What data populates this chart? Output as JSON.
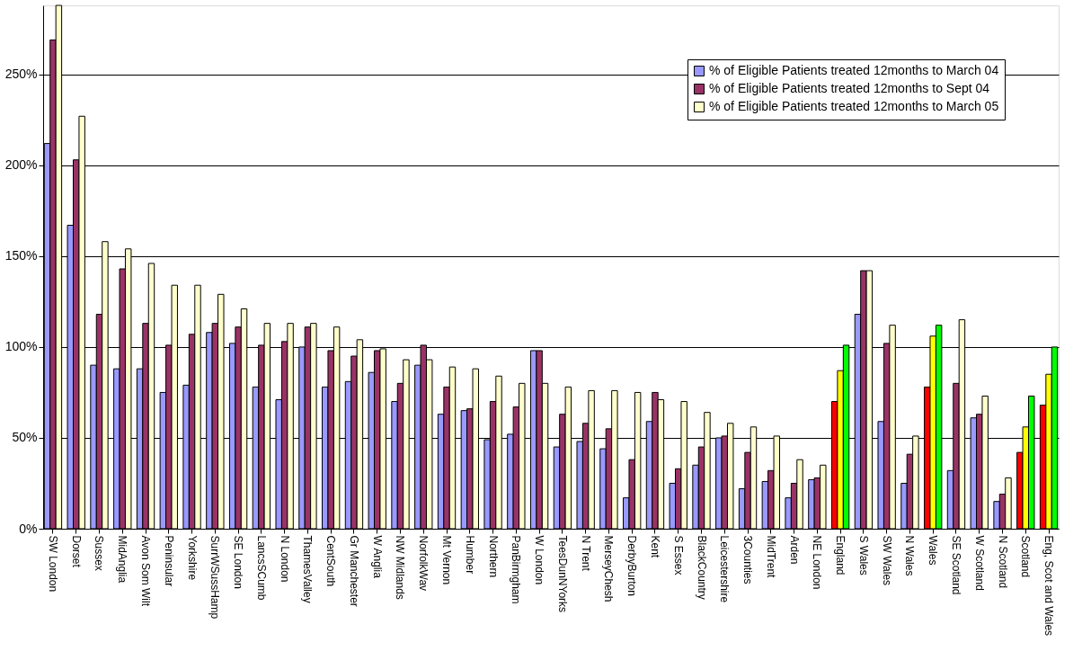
{
  "chart_data": {
    "type": "bar",
    "categories": [
      "SW London",
      "Dorset",
      "Sussex",
      "MidAnglia",
      "Avon Som Wilt",
      "Peninsular",
      "Yorkshire",
      "SurrWSussHamp",
      "SE London",
      "LancsSCumb",
      "N London",
      "ThamesValley",
      "CentSouth",
      "Gr Manchester",
      "W Anglia",
      "NW Midlands",
      "NorfolkWav",
      "Mt Vernon",
      "Humber",
      "Northern",
      "PanBirmgham",
      "W London",
      "TeesDunNYorks",
      "N Trent",
      "MerseyChesh",
      "DerbyBurton",
      "Kent",
      "S Essex",
      "BlackCountry",
      "Leicestershire",
      "3Counties",
      "MidTrent",
      "Arden",
      "NE London",
      "England",
      "S Wales",
      "SW Wales",
      "N Wales",
      "Wales",
      "SE Scotland",
      "W Scotland",
      "N Scotland",
      "Scotland",
      "Eng, Scot and Wales"
    ],
    "series": [
      {
        "name": "% of Eligible Patients treated 12months to March 04",
        "color": "#9999ff",
        "colors": [
          "#9999ff",
          "#9999ff",
          "#9999ff",
          "#9999ff",
          "#9999ff",
          "#9999ff",
          "#9999ff",
          "#9999ff",
          "#9999ff",
          "#9999ff",
          "#9999ff",
          "#9999ff",
          "#9999ff",
          "#9999ff",
          "#9999ff",
          "#9999ff",
          "#9999ff",
          "#9999ff",
          "#9999ff",
          "#9999ff",
          "#9999ff",
          "#9999ff",
          "#9999ff",
          "#9999ff",
          "#9999ff",
          "#9999ff",
          "#9999ff",
          "#9999ff",
          "#9999ff",
          "#9999ff",
          "#9999ff",
          "#9999ff",
          "#9999ff",
          "#9999ff",
          "#ff0000",
          "#9999ff",
          "#9999ff",
          "#9999ff",
          "#ff0000",
          "#9999ff",
          "#9999ff",
          "#9999ff",
          "#ff0000",
          "#ff0000"
        ],
        "values": [
          212,
          167,
          90,
          88,
          88,
          75,
          79,
          108,
          102,
          78,
          71,
          100,
          78,
          81,
          86,
          70,
          90,
          63,
          65,
          49,
          52,
          98,
          45,
          48,
          44,
          17,
          59,
          25,
          35,
          50,
          22,
          26,
          17,
          27,
          70,
          118,
          59,
          25,
          78,
          32,
          61,
          15,
          42,
          68
        ]
      },
      {
        "name": "% of Eligible Patients treated 12months to Sept 04",
        "color": "#993366",
        "colors": [
          "#993366",
          "#993366",
          "#993366",
          "#993366",
          "#993366",
          "#993366",
          "#993366",
          "#993366",
          "#993366",
          "#993366",
          "#993366",
          "#993366",
          "#993366",
          "#993366",
          "#993366",
          "#993366",
          "#993366",
          "#993366",
          "#993366",
          "#993366",
          "#993366",
          "#993366",
          "#993366",
          "#993366",
          "#993366",
          "#993366",
          "#993366",
          "#993366",
          "#993366",
          "#993366",
          "#993366",
          "#993366",
          "#993366",
          "#993366",
          "#ffff00",
          "#993366",
          "#993366",
          "#993366",
          "#ffff00",
          "#993366",
          "#993366",
          "#993366",
          "#ffff00",
          "#ffff00"
        ],
        "values": [
          269,
          203,
          118,
          143,
          113,
          101,
          107,
          113,
          111,
          101,
          103,
          111,
          98,
          95,
          98,
          80,
          101,
          78,
          66,
          70,
          67,
          98,
          63,
          58,
          55,
          38,
          75,
          33,
          45,
          51,
          42,
          32,
          25,
          28,
          87,
          142,
          102,
          41,
          106,
          80,
          63,
          19,
          56,
          85
        ]
      },
      {
        "name": "% of Eligible Patients treated 12months to March 05",
        "color": "#ffffcc",
        "colors": [
          "#ffffcc",
          "#ffffcc",
          "#ffffcc",
          "#ffffcc",
          "#ffffcc",
          "#ffffcc",
          "#ffffcc",
          "#ffffcc",
          "#ffffcc",
          "#ffffcc",
          "#ffffcc",
          "#ffffcc",
          "#ffffcc",
          "#ffffcc",
          "#ffffcc",
          "#ffffcc",
          "#ffffcc",
          "#ffffcc",
          "#ffffcc",
          "#ffffcc",
          "#ffffcc",
          "#ffffcc",
          "#ffffcc",
          "#ffffcc",
          "#ffffcc",
          "#ffffcc",
          "#ffffcc",
          "#ffffcc",
          "#ffffcc",
          "#ffffcc",
          "#ffffcc",
          "#ffffcc",
          "#ffffcc",
          "#ffffcc",
          "#00ff00",
          "#ffffcc",
          "#ffffcc",
          "#ffffcc",
          "#00ff00",
          "#ffffcc",
          "#ffffcc",
          "#ffffcc",
          "#00ff00",
          "#00ff00"
        ],
        "values": [
          288,
          227,
          158,
          154,
          146,
          134,
          134,
          129,
          121,
          113,
          113,
          113,
          111,
          104,
          99,
          93,
          93,
          89,
          88,
          84,
          80,
          80,
          78,
          76,
          76,
          75,
          71,
          70,
          64,
          58,
          56,
          51,
          38,
          35,
          101,
          142,
          112,
          51,
          112,
          115,
          73,
          28,
          73,
          100
        ]
      }
    ],
    "ylim": [
      0,
      288
    ],
    "yticks": [
      {
        "value": 0,
        "label": "0%"
      },
      {
        "value": 50,
        "label": "50%"
      },
      {
        "value": 100,
        "label": "100%"
      },
      {
        "value": 150,
        "label": "150%"
      },
      {
        "value": 200,
        "label": "200%"
      },
      {
        "value": 250,
        "label": "250%"
      }
    ],
    "grid": "y",
    "legend": "top right"
  }
}
